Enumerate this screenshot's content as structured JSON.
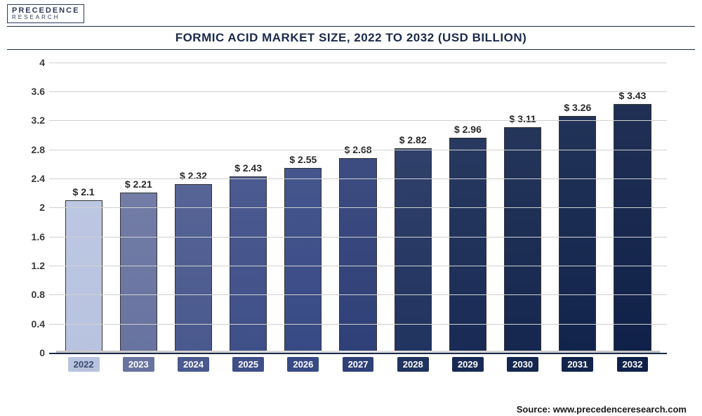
{
  "logo": {
    "line1": "PRECEDENCE",
    "line2": "RESEARCH"
  },
  "chart": {
    "type": "bar",
    "title": "FORMIC ACID MARKET SIZE, 2022 TO 2032 (USD BILLION)",
    "title_fontsize": 17,
    "title_color": "#1a2a4a",
    "background_color": "#ffffff",
    "grid_color": "#d0d0d0",
    "axis_color": "#1a2a4a",
    "ylim": [
      0,
      4
    ],
    "ytick_step": 0.4,
    "yticks": [
      "0",
      "0.4",
      "0.8",
      "1.2",
      "1.6",
      "2",
      "2.4",
      "2.8",
      "3.2",
      "3.6",
      "4"
    ],
    "label_fontsize": 14,
    "value_prefix": "$ ",
    "categories": [
      "2022",
      "2023",
      "2024",
      "2025",
      "2026",
      "2027",
      "2028",
      "2029",
      "2030",
      "2031",
      "2032"
    ],
    "values": [
      2.1,
      2.21,
      2.32,
      2.43,
      2.55,
      2.68,
      2.82,
      2.96,
      3.11,
      3.26,
      3.43
    ],
    "value_labels": [
      "$ 2.1",
      "$ 2.21",
      "$ 2.32",
      "$ 2.43",
      "$ 2.55",
      "$ 2.68",
      "$ 2.82",
      "$ 2.96",
      "$ 3.11",
      "$ 3.26",
      "$ 3.43"
    ],
    "bar_colors": [
      "#b8c3e0",
      "#6873a0",
      "#4a598e",
      "#3f4f88",
      "#384a85",
      "#2f4078",
      "#21335f",
      "#192b55",
      "#15274f",
      "#12244c",
      "#102149"
    ],
    "x_label_bg_colors": [
      "#b8c3e0",
      "#6873a0",
      "#4a598e",
      "#3f4f88",
      "#384a85",
      "#2f4078",
      "#21335f",
      "#192b55",
      "#15274f",
      "#12244c",
      "#102149"
    ],
    "bar_width": 0.68
  },
  "source": "Source: www.precedenceresearch.com"
}
